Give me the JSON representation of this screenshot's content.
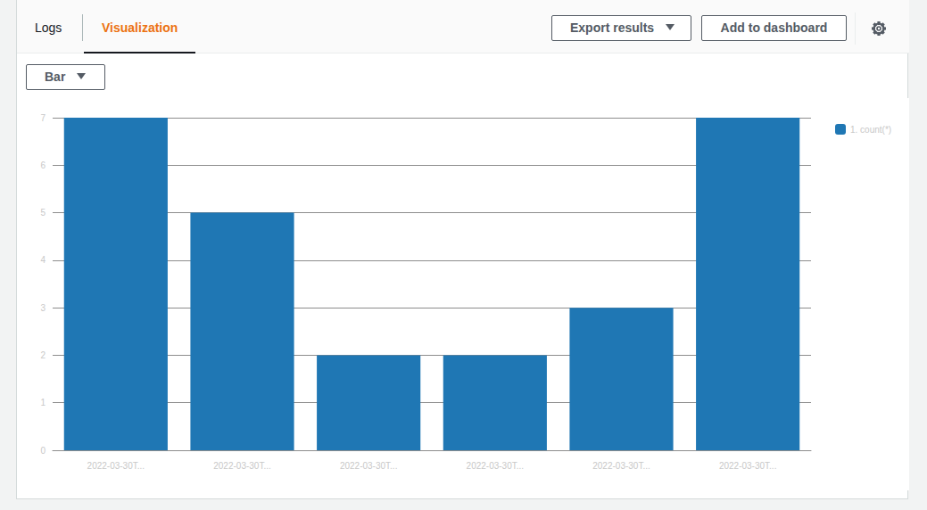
{
  "header": {
    "tabs": [
      {
        "label": "Logs",
        "active": false
      },
      {
        "label": "Visualization",
        "active": true
      }
    ],
    "buttons": [
      {
        "label": "Export results",
        "menu": true
      },
      {
        "label": "Add to dashboard",
        "menu": false
      }
    ]
  },
  "chart_controls": {
    "chart_type_selector": "Bar"
  },
  "chart_data": {
    "type": "bar",
    "categories": [
      "2022-03-30T...",
      "2022-03-30T...",
      "2022-03-30T...",
      "2022-03-30T...",
      "2022-03-30T...",
      "2022-03-30T..."
    ],
    "series": [
      {
        "name": "1. count(*)",
        "color": "#1f77b4",
        "values": [
          7,
          5,
          2,
          2,
          3,
          7
        ]
      }
    ],
    "ylim": [
      0,
      7
    ],
    "yticks": [
      0,
      1,
      2,
      3,
      4,
      5,
      6,
      7
    ],
    "grid": true,
    "legend": "right"
  }
}
